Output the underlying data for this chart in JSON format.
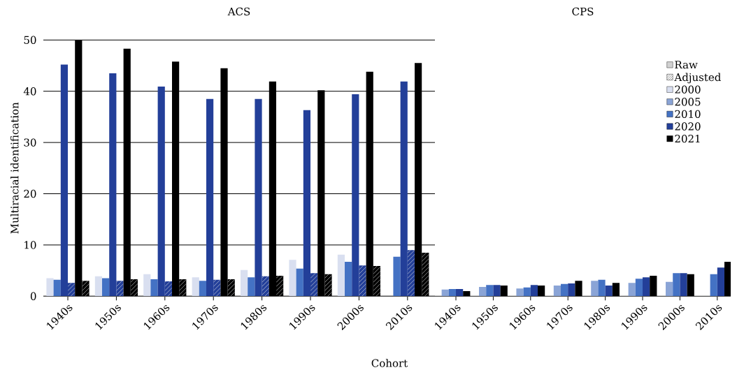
{
  "chart_data": [
    {
      "type": "bar",
      "title": "ACS",
      "xlabel": "Cohort",
      "ylabel": "Multiracial identification",
      "categories": [
        "1940s",
        "1950s",
        "1960s",
        "1970s",
        "1980s",
        "1990s",
        "2000s",
        "2010s"
      ],
      "ylim": [
        0,
        50
      ],
      "yticks": [
        0,
        10,
        20,
        30,
        40,
        50
      ],
      "grid": "y",
      "series": [
        {
          "color": "#d9dff0",
          "values": [
            3.5,
            3.9,
            4.3,
            3.7,
            5.1,
            7.1,
            8.1,
            null
          ]
        },
        {
          "color": "#4472c4",
          "values": [
            3.2,
            3.5,
            3.3,
            3.0,
            3.7,
            5.4,
            6.7,
            7.7
          ]
        },
        {
          "color": "#233f99",
          "values": [
            45.2,
            43.5,
            40.9,
            38.5,
            38.5,
            36.3,
            39.4,
            41.9
          ]
        },
        {
          "color": "#233f99",
          "values": [
            2.6,
            3.0,
            2.9,
            3.2,
            3.9,
            4.5,
            6.0,
            9.0
          ]
        },
        {
          "color": "#000000",
          "values": [
            50.0,
            48.3,
            45.8,
            44.5,
            41.9,
            40.2,
            43.8,
            45.5
          ]
        },
        {
          "color": "#000000",
          "values": [
            3.0,
            3.3,
            3.3,
            3.3,
            4.0,
            4.3,
            5.9,
            8.5
          ]
        }
      ]
    },
    {
      "type": "bar",
      "title": "CPS",
      "categories": [
        "1940s",
        "1950s",
        "1960s",
        "1970s",
        "1980s",
        "1990s",
        "2000s",
        "2010s"
      ],
      "ylim": [
        0,
        50
      ],
      "yticks": [
        0,
        10,
        20,
        30,
        40,
        50
      ],
      "tick_labels": "x",
      "legend": "top right",
      "annotations": [
        "Raw",
        "Adjusted"
      ],
      "series": [
        {
          "name": "2000",
          "color": "#d9dff0",
          "values": [
            null,
            null,
            null,
            null,
            null,
            null,
            null,
            null
          ]
        },
        {
          "name": "2005",
          "color": "#8aa4d6",
          "values": [
            1.3,
            1.8,
            1.5,
            2.1,
            3.0,
            2.6,
            2.8,
            null
          ]
        },
        {
          "name": "2010",
          "color": "#4472c4",
          "values": [
            1.4,
            2.2,
            1.7,
            2.4,
            3.2,
            3.4,
            4.5,
            4.3
          ]
        },
        {
          "name": "2020",
          "color": "#233f99",
          "values": [
            1.4,
            2.2,
            2.2,
            2.5,
            2.1,
            3.7,
            4.5,
            5.6
          ]
        },
        {
          "name": "2021",
          "color": "#000000",
          "values": [
            1.0,
            2.1,
            2.1,
            3.0,
            2.6,
            4.0,
            4.3,
            6.7
          ]
        }
      ]
    }
  ]
}
